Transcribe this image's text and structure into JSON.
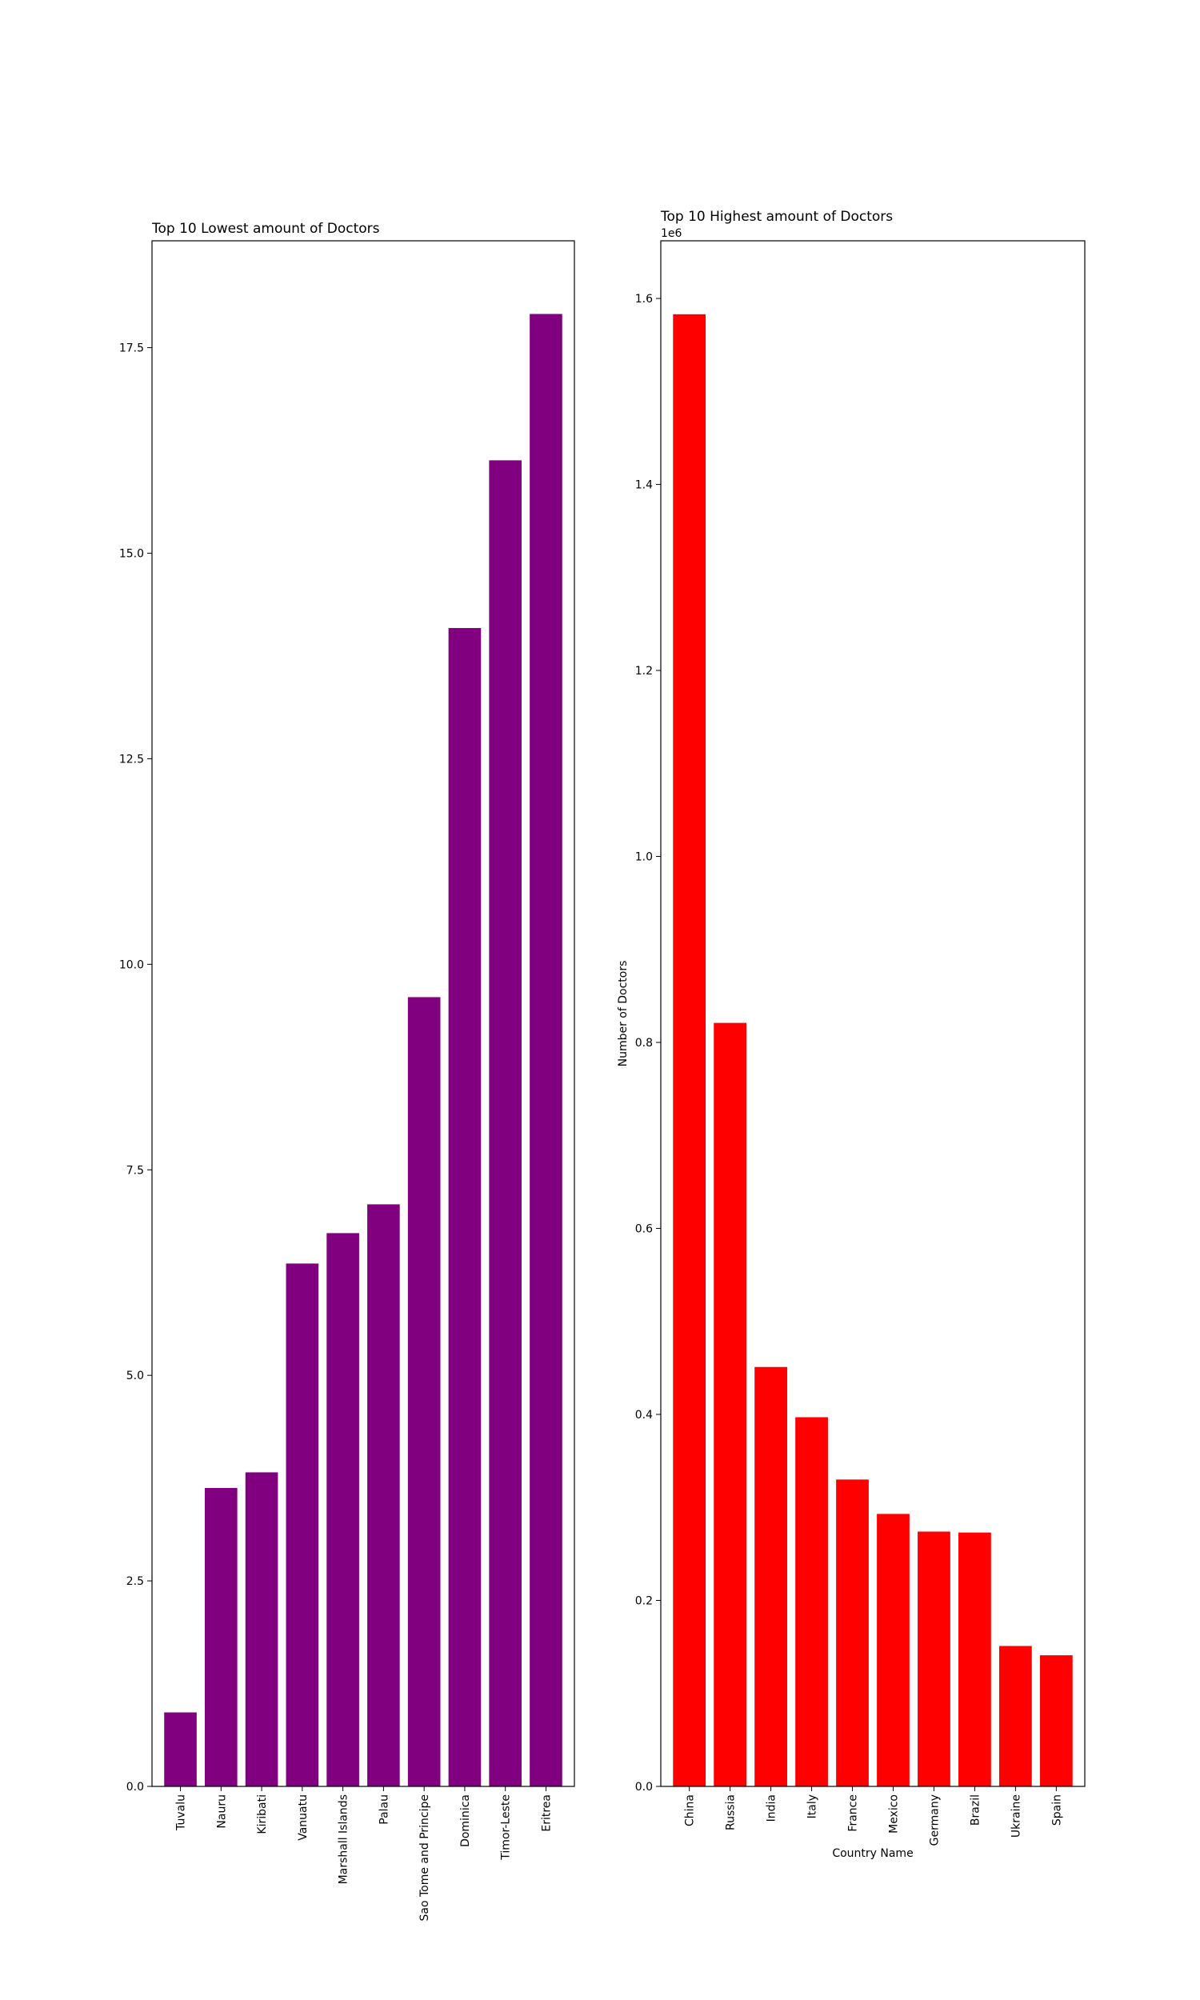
{
  "chart_data": [
    {
      "type": "bar",
      "title": "Top 10 Lowest amount of Doctors",
      "xlabel": "",
      "ylabel": "",
      "categories": [
        "Tuvalu",
        "Nauru",
        "Kiribati",
        "Vanuatu",
        "Marshall Islands",
        "Palau",
        "Sao Tome and Principe",
        "Dominica",
        "Timor-Leste",
        "Eritrea"
      ],
      "values": [
        0.9,
        3.63,
        3.82,
        6.36,
        6.73,
        7.08,
        9.6,
        14.09,
        16.13,
        17.91
      ],
      "ylim": [
        0,
        18.8
      ],
      "yticks": [
        0,
        2.5,
        5,
        7.5,
        10,
        12.5,
        15,
        17.5
      ],
      "ytick_labels": [
        "0.0",
        "2.5",
        "5.0",
        "7.5",
        "10.0",
        "12.5",
        "15.0",
        "17.5"
      ],
      "offset_text": "",
      "color": "#800080",
      "grid": false,
      "legend": "none"
    },
    {
      "type": "bar",
      "title": "Top 10 Highest amount of Doctors",
      "xlabel": "Country Name",
      "ylabel": "Number of Doctors",
      "categories": [
        "China",
        "Russia",
        "India",
        "Italy",
        "France",
        "Mexico",
        "Germany",
        "Brazil",
        "Ukraine",
        "Spain"
      ],
      "values": [
        1583000,
        821000,
        451000,
        397000,
        330000,
        293000,
        274000,
        273000,
        151000,
        141000
      ],
      "ylim": [
        0,
        1662000
      ],
      "yticks": [
        0,
        200000,
        400000,
        600000,
        800000,
        1000000,
        1200000,
        1400000,
        1600000
      ],
      "ytick_labels": [
        "0.0",
        "0.2",
        "0.4",
        "0.6",
        "0.8",
        "1.0",
        "1.2",
        "1.4",
        "1.6"
      ],
      "offset_text": "1e6",
      "color": "#ff0000",
      "grid": false,
      "legend": "none"
    }
  ]
}
